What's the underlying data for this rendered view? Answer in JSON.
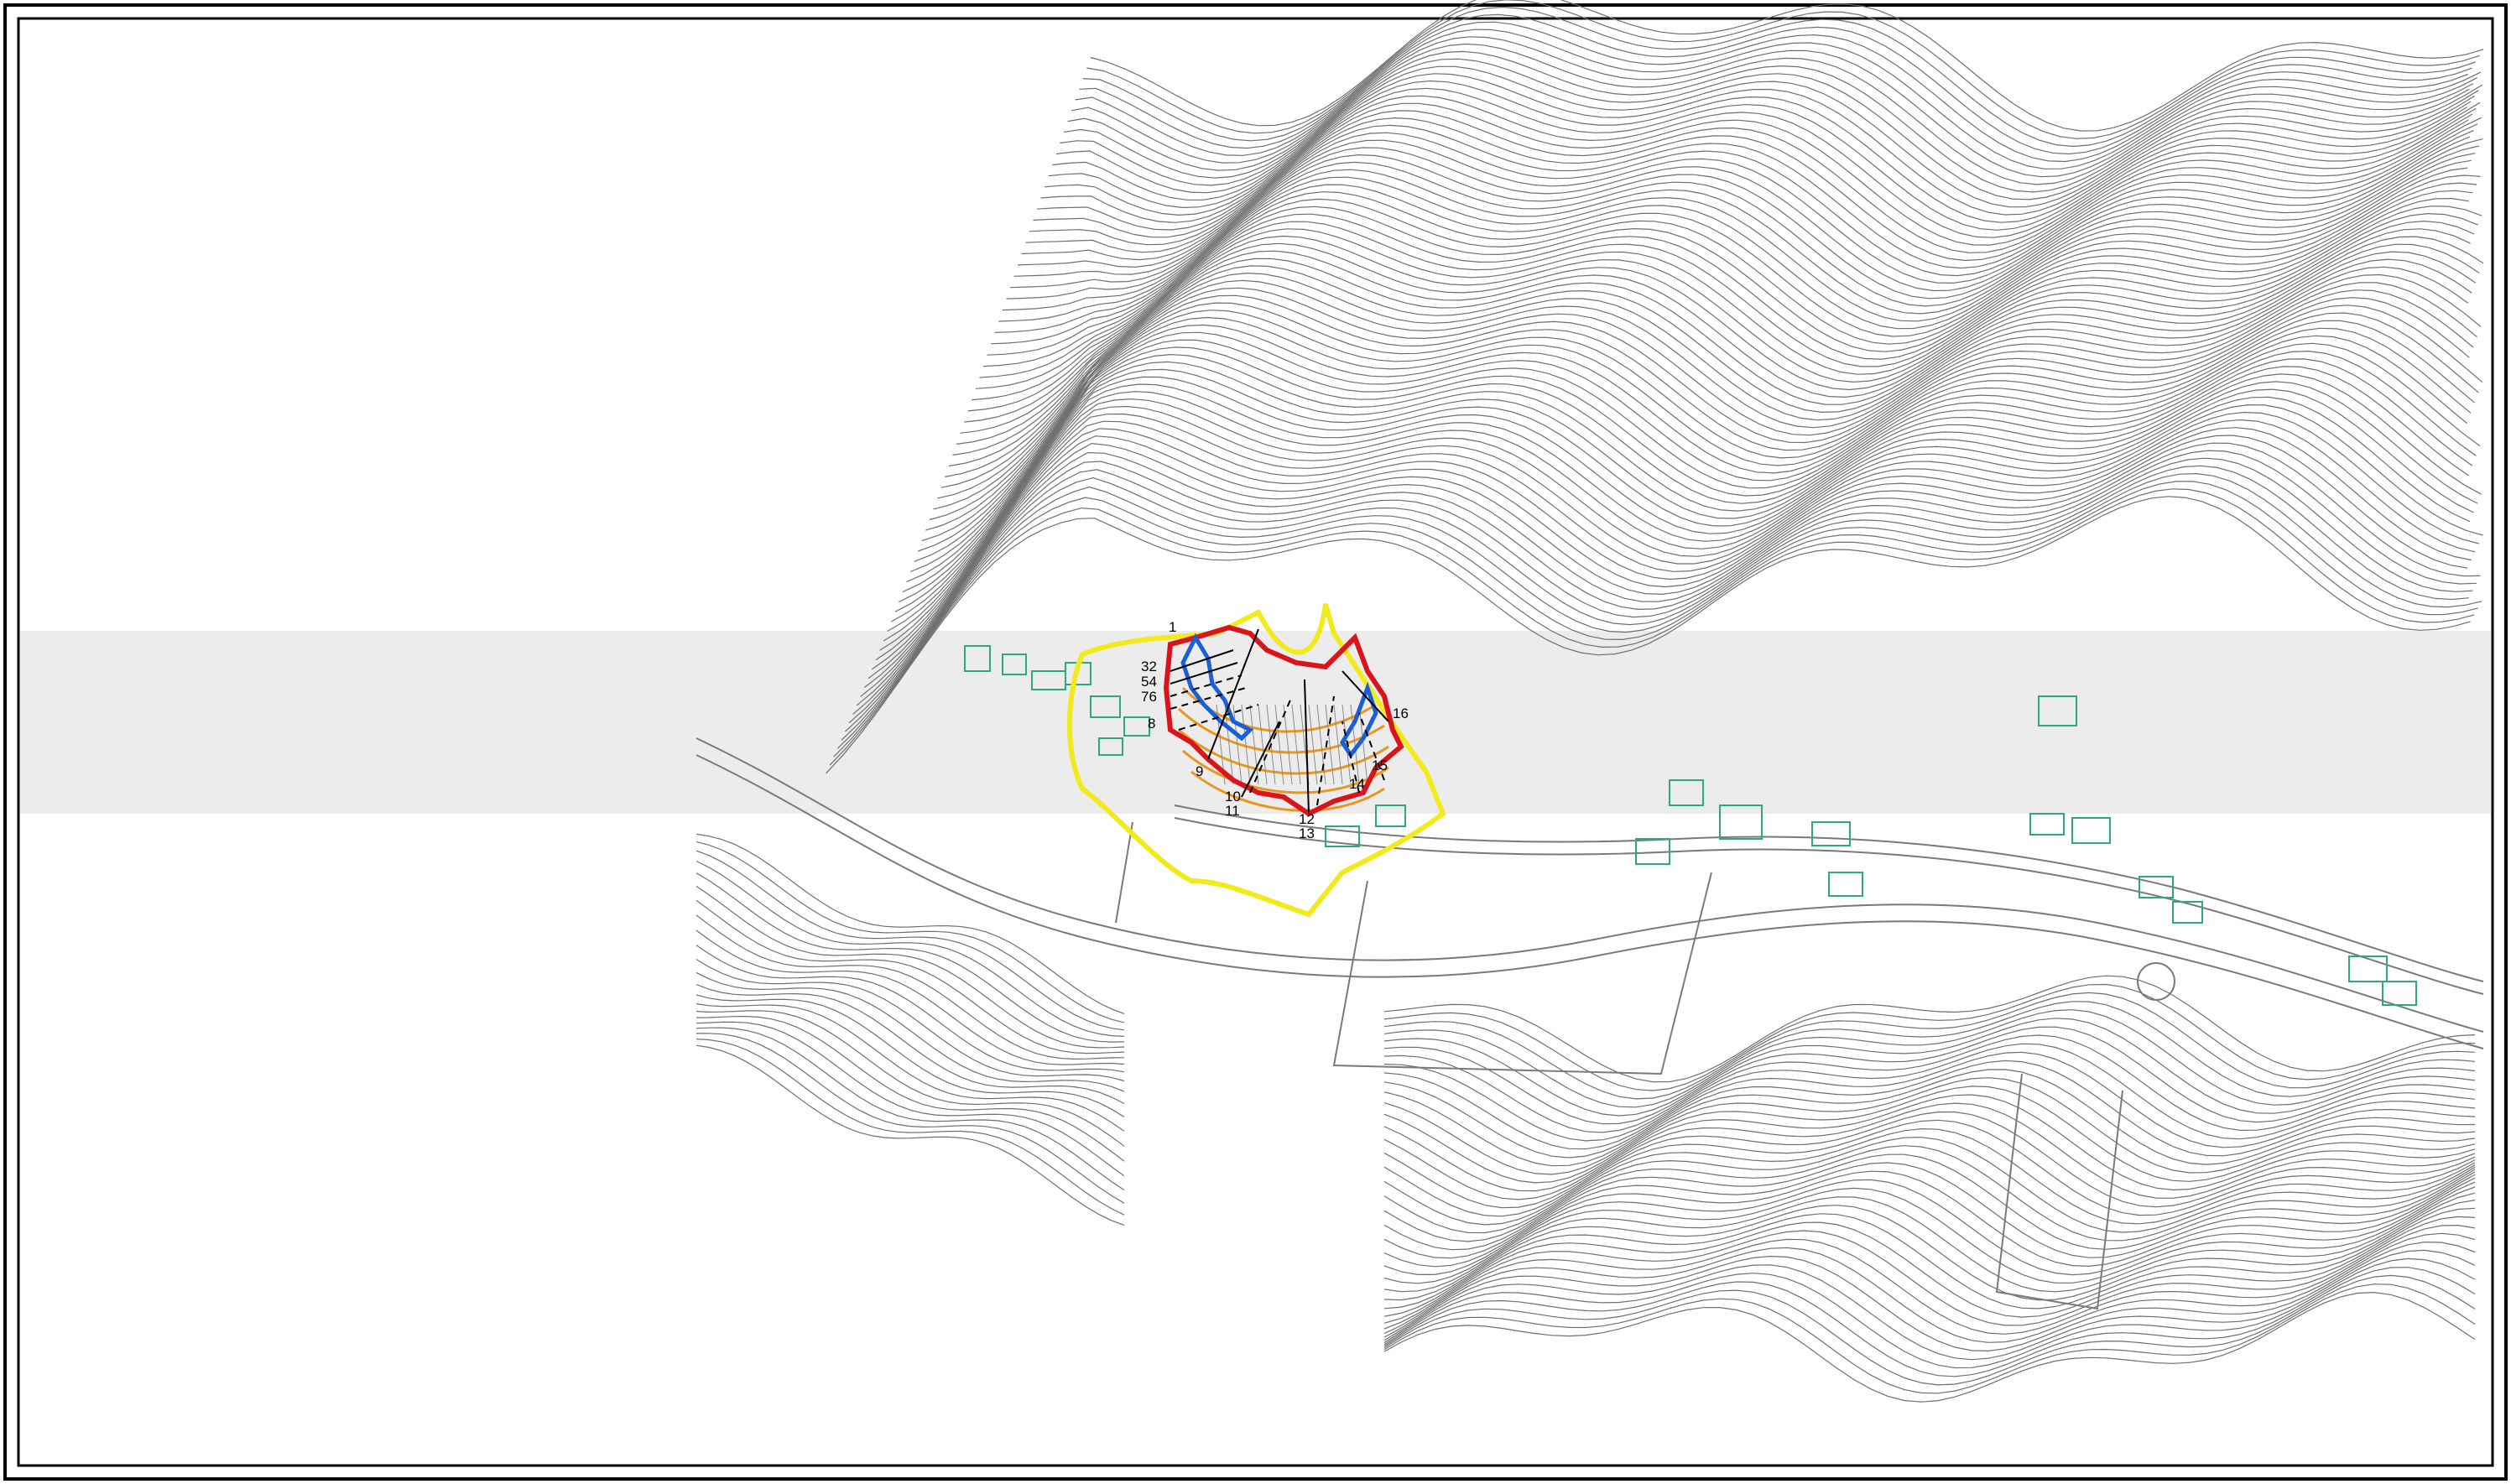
{
  "map": {
    "colors": {
      "contour": "#6f6f6f",
      "road": "#7a7a7a",
      "building": "#2eaa7a",
      "boundary_yellow": "#f2ea1c",
      "zone_red": "#d9141b",
      "zone_blue": "#1a5fd6",
      "zone_orange": "#e8961e",
      "section_black": "#000000",
      "band": "#ececec"
    },
    "section_labels": [
      "1",
      "32",
      "54",
      "76",
      "8",
      "9",
      "10",
      "11",
      "12",
      "13",
      "14",
      "15",
      "16"
    ]
  }
}
